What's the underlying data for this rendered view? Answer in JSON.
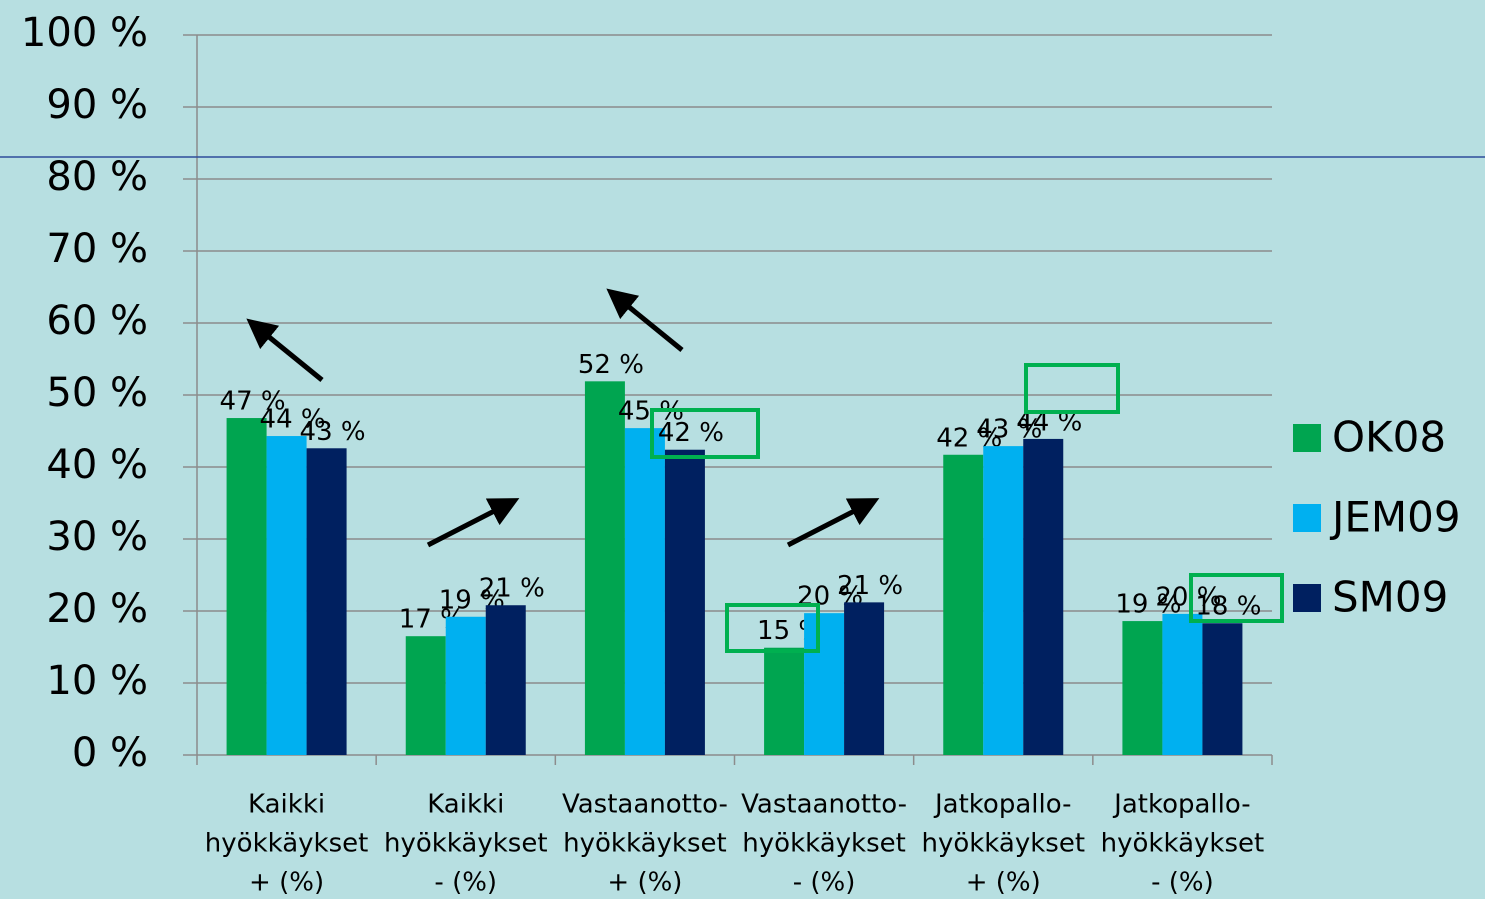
{
  "chart_data": {
    "type": "bar",
    "categories": [
      [
        "Kaikki",
        "hyökkäykset",
        "+ (%)"
      ],
      [
        "Kaikki",
        "hyökkäykset",
        "- (%)"
      ],
      [
        "Vastaanotto-",
        "hyökkäykset",
        "+ (%)"
      ],
      [
        "Vastaanotto-",
        "hyökkäykset",
        "- (%)"
      ],
      [
        "Jatkopallo-",
        "hyökkäykset",
        "+ (%)"
      ],
      [
        "Jatkopallo-",
        "hyökkäykset",
        "- (%)"
      ]
    ],
    "series": [
      {
        "name": "OK08",
        "color": "#00a550",
        "values": [
          46.8,
          16.5,
          51.9,
          14.9,
          41.7,
          18.6
        ],
        "value_labels": [
          "47 %",
          "17 %",
          "52 %",
          "15 %",
          "42 %",
          "19 %"
        ]
      },
      {
        "name": "JEM09",
        "color": "#00b0f0",
        "values": [
          44.3,
          19.2,
          45.4,
          19.7,
          42.9,
          19.6
        ],
        "value_labels": [
          "44 %",
          "19 %",
          "45 %",
          "20 %",
          "43 %",
          "20 %"
        ]
      },
      {
        "name": "SM09",
        "color": "#002060",
        "values": [
          42.6,
          20.8,
          42.4,
          21.2,
          43.9,
          18.3
        ],
        "value_labels": [
          "43 %",
          "21 %",
          "42 %",
          "21 %",
          "44 %",
          "18 %"
        ]
      }
    ],
    "ylim": [
      0,
      100
    ],
    "yticks": [
      {
        "value": 0,
        "label": "0 %"
      },
      {
        "value": 10,
        "label": "10 %"
      },
      {
        "value": 20,
        "label": "20 %"
      },
      {
        "value": 30,
        "label": "30 %"
      },
      {
        "value": 40,
        "label": "40 %"
      },
      {
        "value": 50,
        "label": "50 %"
      },
      {
        "value": 60,
        "label": "60 %"
      },
      {
        "value": 70,
        "label": "70 %"
      },
      {
        "value": 80,
        "label": "80 %"
      },
      {
        "value": 90,
        "label": "90 %"
      },
      {
        "value": 100,
        "label": "100 %"
      }
    ],
    "grid": true,
    "legend": "right"
  }
}
